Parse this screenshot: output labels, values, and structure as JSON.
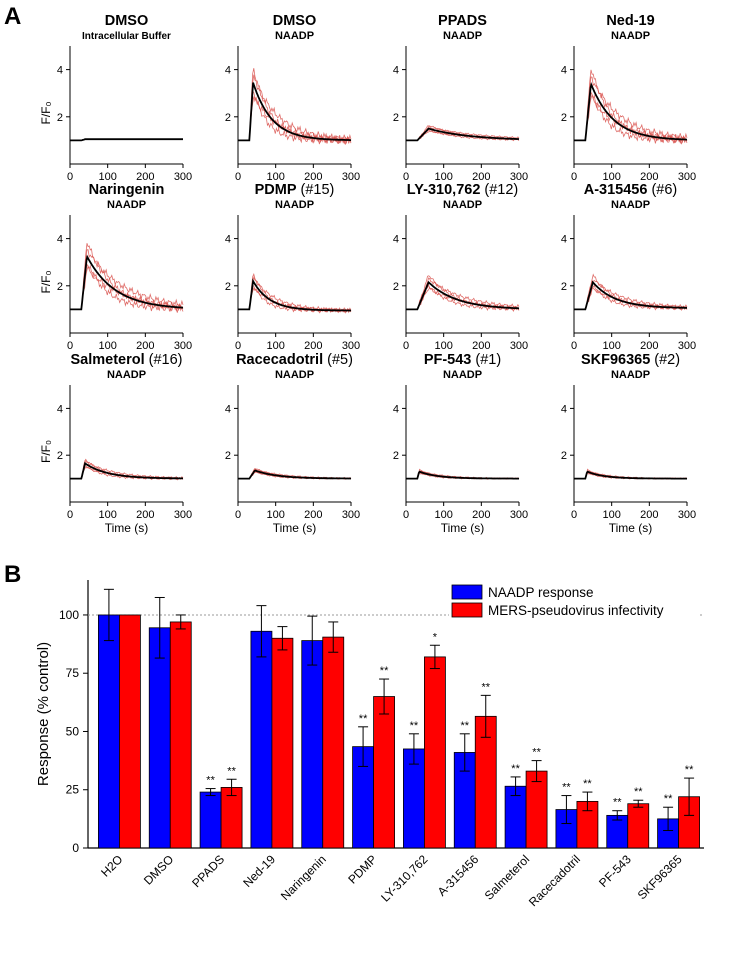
{
  "panel_labels": {
    "a": "A",
    "b": "B"
  },
  "colors": {
    "naadp_bar": "#0000ff",
    "mers_bar": "#ff0000",
    "mean_trace": "#000000",
    "replicate_trace": "#d9534f",
    "reference_line": "#999999"
  },
  "chart_data": [
    {
      "type": "line",
      "panel": "A",
      "grid_layout": "3 rows x 4 columns",
      "ylabel": "F/F₀",
      "xlabel": "Time (s)",
      "xlim": [
        0,
        300
      ],
      "ylim": [
        0,
        5
      ],
      "xticks": [
        0,
        100,
        200,
        300
      ],
      "yticks": [
        2,
        4
      ],
      "subplots": [
        {
          "title": "DMSO",
          "number": "",
          "subtitle": "Intracellular Buffer",
          "peak": 1.05,
          "peak_time": 40,
          "plateau": 1.0,
          "decay": 0
        },
        {
          "title": "DMSO",
          "number": "",
          "subtitle": "NAADP",
          "peak": 3.45,
          "peak_time": 40,
          "plateau": 1.0,
          "decay": 50
        },
        {
          "title": "PPADS",
          "number": "",
          "subtitle": "NAADP",
          "peak": 1.5,
          "peak_time": 60,
          "plateau": 1.0,
          "decay": 110
        },
        {
          "title": "Ned-19",
          "number": "",
          "subtitle": "NAADP",
          "peak": 3.4,
          "peak_time": 45,
          "plateau": 1.0,
          "decay": 60
        },
        {
          "title": "Naringenin",
          "number": "",
          "subtitle": "NAADP",
          "peak": 3.25,
          "peak_time": 45,
          "plateau": 1.0,
          "decay": 75
        },
        {
          "title": "PDMP",
          "number": "(#15)",
          "subtitle": "NAADP",
          "peak": 2.2,
          "peak_time": 40,
          "plateau": 0.95,
          "decay": 45
        },
        {
          "title": "LY-310,762",
          "number": "(#12)",
          "subtitle": "NAADP",
          "peak": 2.15,
          "peak_time": 60,
          "plateau": 1.0,
          "decay": 75
        },
        {
          "title": "A-315456",
          "number": "(#6)",
          "subtitle": "NAADP",
          "peak": 2.15,
          "peak_time": 50,
          "plateau": 1.05,
          "decay": 60
        },
        {
          "title": "Salmeterol",
          "number": "(#16)",
          "subtitle": "NAADP",
          "peak": 1.65,
          "peak_time": 40,
          "plateau": 1.0,
          "decay": 60
        },
        {
          "title": "Racecadotril",
          "number": "(#5)",
          "subtitle": "NAADP",
          "peak": 1.35,
          "peak_time": 45,
          "plateau": 1.0,
          "decay": 60
        },
        {
          "title": "PF-543",
          "number": "(#1)",
          "subtitle": "NAADP",
          "peak": 1.3,
          "peak_time": 35,
          "plateau": 1.0,
          "decay": 50
        },
        {
          "title": "SKF96365",
          "number": "(#2)",
          "subtitle": "NAADP",
          "peak": 1.3,
          "peak_time": 35,
          "plateau": 1.0,
          "decay": 45
        }
      ]
    },
    {
      "type": "bar",
      "panel": "B",
      "ylabel": "Response (% control)",
      "ylim": [
        0,
        115
      ],
      "yticks": [
        0,
        25,
        50,
        75,
        100
      ],
      "reference_line": 100,
      "categories": [
        "H2O",
        "DMSO",
        "PPADS",
        "Ned-19",
        "Naringenin",
        "PDMP",
        "LY-310,762",
        "A-315456",
        "Salmeterol",
        "Racecadotril",
        "PF-543",
        "SKF96365"
      ],
      "series": [
        {
          "name": "NAADP response",
          "color": "#0000ff",
          "values": [
            100,
            94.5,
            24,
            93,
            89,
            43.5,
            42.5,
            41,
            26.5,
            16.5,
            14,
            12.5
          ],
          "errors": [
            11,
            13,
            1.5,
            11,
            10.5,
            8.5,
            6.5,
            8,
            4,
            6,
            2,
            5
          ],
          "significance": [
            "",
            "",
            "**",
            "",
            "",
            "**",
            "**",
            "**",
            "**",
            "**",
            "**",
            "**"
          ]
        },
        {
          "name": "MERS-pseudovirus infectivity",
          "color": "#ff0000",
          "values": [
            100,
            97,
            26,
            90,
            90.5,
            65,
            82,
            56.5,
            33,
            20,
            19,
            22
          ],
          "errors": [
            0,
            3,
            3.5,
            5,
            6.5,
            7.5,
            5,
            9,
            4.5,
            4,
            1.5,
            8
          ],
          "significance": [
            "",
            "",
            "**",
            "",
            "",
            "**",
            "*",
            "**",
            "**",
            "**",
            "**",
            "**"
          ]
        }
      ],
      "legend_position": "top-right"
    }
  ]
}
